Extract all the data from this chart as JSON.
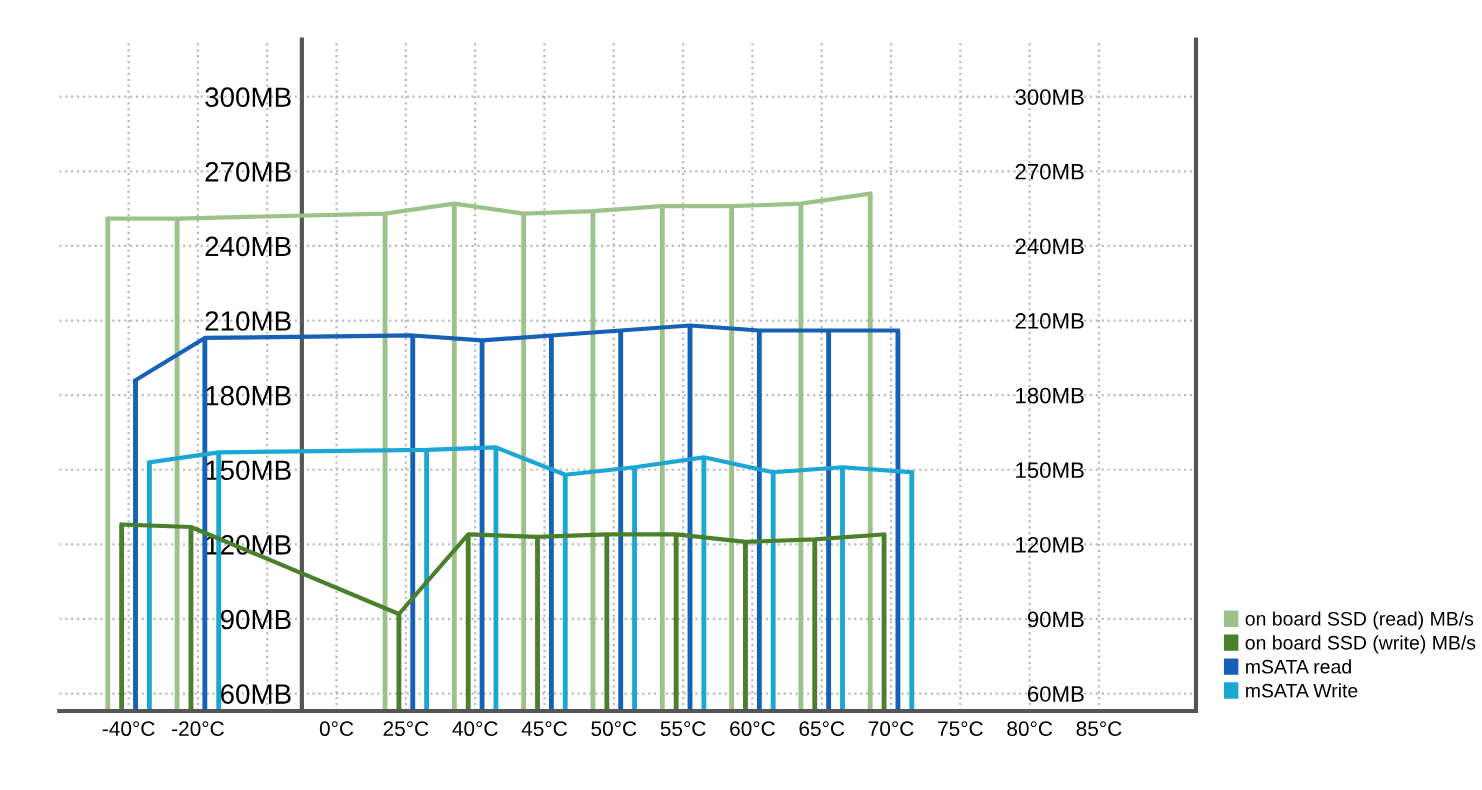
{
  "chart_data": {
    "type": "bar",
    "categories": [
      "-40°C",
      "-20°C",
      null,
      "0°C",
      "25°C",
      "40°C",
      "45°C",
      "50°C",
      "55°C",
      "60°C",
      "65°C",
      "70°C",
      "75°C",
      "80°C",
      "85°C"
    ],
    "series": [
      {
        "name": "on board SSD (read) MB/s",
        "color": "#9cc28a",
        "values": [
          251,
          251,
          null,
          null,
          253,
          257,
          253,
          254,
          256,
          256,
          257,
          261,
          null,
          null,
          null
        ]
      },
      {
        "name": "on board SSD (write) MB/s",
        "color": "#4a7f2c",
        "values": [
          128,
          127,
          null,
          null,
          92,
          124,
          123,
          124,
          124,
          121,
          122,
          124,
          null,
          null,
          null
        ]
      },
      {
        "name": "mSATA read",
        "color": "#1660b8",
        "values": [
          186,
          203,
          null,
          null,
          204,
          202,
          204,
          206,
          208,
          206,
          206,
          206,
          null,
          null,
          null
        ]
      },
      {
        "name": "mSATA Write",
        "color": "#1ca6d4",
        "values": [
          153,
          157,
          null,
          null,
          158,
          159,
          148,
          151,
          155,
          149,
          151,
          149,
          null,
          null,
          null
        ]
      }
    ],
    "ylim": [
      53,
      323
    ],
    "yticks": [
      {
        "value": 60,
        "label": "60MB"
      },
      {
        "value": 90,
        "label": "90MB"
      },
      {
        "value": 120,
        "label": "120MB"
      },
      {
        "value": 150,
        "label": "150MB"
      },
      {
        "value": 180,
        "label": "180MB"
      },
      {
        "value": 210,
        "label": "210MB"
      },
      {
        "value": 240,
        "label": "240MB"
      },
      {
        "value": 270,
        "label": "270MB"
      },
      {
        "value": 300,
        "label": "300MB"
      }
    ],
    "y2lim": [
      53,
      323
    ],
    "y2ticks": [
      {
        "value": 60,
        "label": "60MB"
      },
      {
        "value": 90,
        "label": "90MB"
      },
      {
        "value": 120,
        "label": "120MB"
      },
      {
        "value": 150,
        "label": "150MB"
      },
      {
        "value": 180,
        "label": "180MB"
      },
      {
        "value": 210,
        "label": "210MB"
      },
      {
        "value": 240,
        "label": "240MB"
      },
      {
        "value": 270,
        "label": "270MB"
      },
      {
        "value": 300,
        "label": "300MB"
      }
    ],
    "grid": true,
    "legend": "bottom right"
  }
}
